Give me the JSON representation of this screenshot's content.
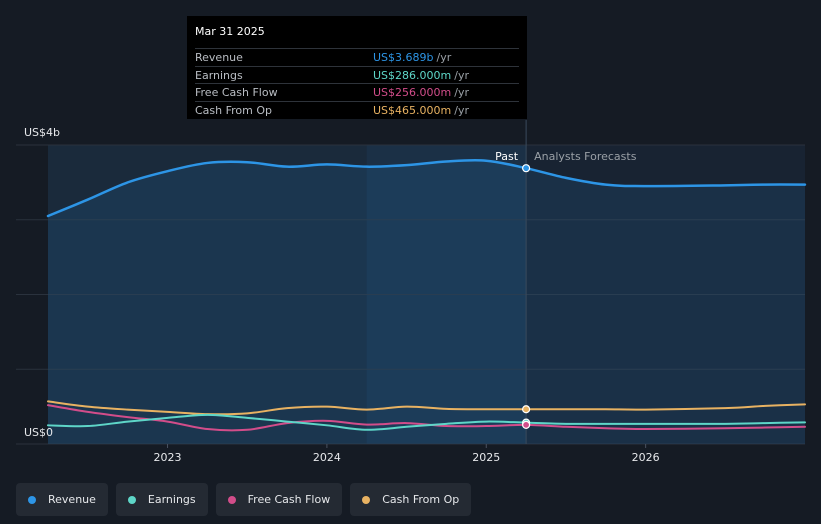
{
  "chart_data": {
    "type": "line",
    "y_unit_label": "US$4b",
    "y_zero_label": "US$0",
    "ylim": [
      0,
      4
    ],
    "x_ticks": [
      {
        "label": "2023",
        "x": 2023.0
      },
      {
        "label": "2024",
        "x": 2024.0
      },
      {
        "label": "2025",
        "x": 2025.0
      },
      {
        "label": "2026",
        "x": 2026.0
      }
    ],
    "divider_x": 2025.25,
    "past_label": "Past",
    "forecast_label": "Analysts Forecasts",
    "series": [
      {
        "name": "Revenue",
        "color": "#2d95e6",
        "points": [
          [
            2022.25,
            3.05
          ],
          [
            2022.5,
            3.27
          ],
          [
            2022.75,
            3.5
          ],
          [
            2023.0,
            3.65
          ],
          [
            2023.25,
            3.76
          ],
          [
            2023.5,
            3.77
          ],
          [
            2023.75,
            3.71
          ],
          [
            2024.0,
            3.74
          ],
          [
            2024.25,
            3.71
          ],
          [
            2024.5,
            3.73
          ],
          [
            2024.75,
            3.78
          ],
          [
            2025.0,
            3.79
          ],
          [
            2025.25,
            3.69
          ],
          [
            2025.5,
            3.56
          ],
          [
            2025.75,
            3.47
          ],
          [
            2026.0,
            3.45
          ],
          [
            2026.5,
            3.46
          ],
          [
            2026.75,
            3.47
          ],
          [
            2027.0,
            3.47
          ]
        ]
      },
      {
        "name": "Earnings",
        "color": "#5ed6c8",
        "points": [
          [
            2022.25,
            0.25
          ],
          [
            2022.5,
            0.24
          ],
          [
            2022.75,
            0.3
          ],
          [
            2023.0,
            0.35
          ],
          [
            2023.25,
            0.39
          ],
          [
            2023.5,
            0.35
          ],
          [
            2023.75,
            0.3
          ],
          [
            2024.0,
            0.25
          ],
          [
            2024.25,
            0.19
          ],
          [
            2024.5,
            0.23
          ],
          [
            2024.75,
            0.27
          ],
          [
            2025.0,
            0.3
          ],
          [
            2025.25,
            0.286
          ],
          [
            2025.5,
            0.27
          ],
          [
            2025.75,
            0.27
          ],
          [
            2026.0,
            0.27
          ],
          [
            2026.5,
            0.27
          ],
          [
            2026.75,
            0.28
          ],
          [
            2027.0,
            0.29
          ]
        ]
      },
      {
        "name": "Free Cash Flow",
        "color": "#d24d8a",
        "points": [
          [
            2022.25,
            0.52
          ],
          [
            2022.5,
            0.43
          ],
          [
            2022.75,
            0.36
          ],
          [
            2023.0,
            0.3
          ],
          [
            2023.25,
            0.2
          ],
          [
            2023.5,
            0.19
          ],
          [
            2023.75,
            0.28
          ],
          [
            2024.0,
            0.31
          ],
          [
            2024.25,
            0.26
          ],
          [
            2024.5,
            0.28
          ],
          [
            2024.75,
            0.24
          ],
          [
            2025.0,
            0.24
          ],
          [
            2025.25,
            0.256
          ],
          [
            2025.5,
            0.23
          ],
          [
            2025.75,
            0.21
          ],
          [
            2026.0,
            0.2
          ],
          [
            2026.5,
            0.21
          ],
          [
            2026.75,
            0.22
          ],
          [
            2027.0,
            0.23
          ]
        ]
      },
      {
        "name": "Cash From Op",
        "color": "#e8b262",
        "points": [
          [
            2022.25,
            0.57
          ],
          [
            2022.5,
            0.5
          ],
          [
            2022.75,
            0.46
          ],
          [
            2023.0,
            0.43
          ],
          [
            2023.25,
            0.4
          ],
          [
            2023.5,
            0.41
          ],
          [
            2023.75,
            0.48
          ],
          [
            2024.0,
            0.5
          ],
          [
            2024.25,
            0.46
          ],
          [
            2024.5,
            0.5
          ],
          [
            2024.75,
            0.47
          ],
          [
            2025.0,
            0.465
          ],
          [
            2025.25,
            0.465
          ],
          [
            2025.5,
            0.465
          ],
          [
            2025.75,
            0.465
          ],
          [
            2026.0,
            0.46
          ],
          [
            2026.5,
            0.48
          ],
          [
            2026.75,
            0.51
          ],
          [
            2027.0,
            0.53
          ]
        ]
      }
    ]
  },
  "tooltip": {
    "date": "Mar 31 2025",
    "rows": [
      {
        "label": "Revenue",
        "value": "US$3.689b",
        "unit": "/yr",
        "color": "#2d95e6"
      },
      {
        "label": "Earnings",
        "value": "US$286.000m",
        "unit": "/yr",
        "color": "#5ed6c8"
      },
      {
        "label": "Free Cash Flow",
        "value": "US$256.000m",
        "unit": "/yr",
        "color": "#d24d8a"
      },
      {
        "label": "Cash From Op",
        "value": "US$465.000m",
        "unit": "/yr",
        "color": "#e8b262"
      }
    ]
  },
  "legend": [
    {
      "label": "Revenue",
      "color": "#2d95e6"
    },
    {
      "label": "Earnings",
      "color": "#5ed6c8"
    },
    {
      "label": "Free Cash Flow",
      "color": "#d24d8a"
    },
    {
      "label": "Cash From Op",
      "color": "#e8b262"
    }
  ]
}
